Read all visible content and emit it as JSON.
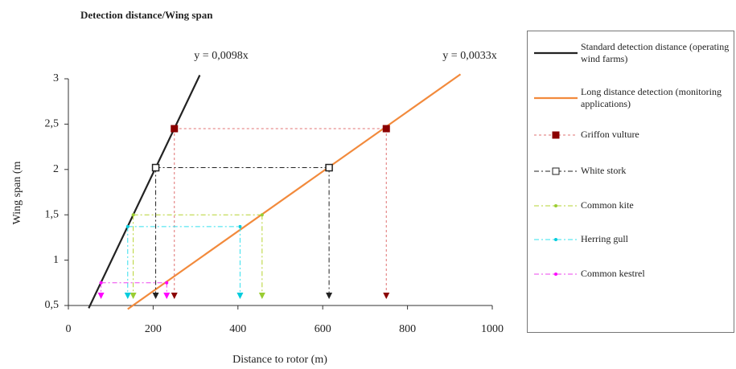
{
  "chart_data": {
    "type": "line",
    "title": "Detection distance/Wing span",
    "x_label": "Distance to rotor (m)",
    "y_label": "Wing span (m",
    "xlim": [
      0,
      1000
    ],
    "xticks": [
      0,
      200,
      400,
      600,
      800,
      1000
    ],
    "ylim": [
      0.5,
      3
    ],
    "yticks": [
      {
        "value": 0.5,
        "label": "0,5"
      },
      1,
      {
        "value": 1.5,
        "label": "1,5"
      },
      2,
      {
        "value": 2.5,
        "label": "2,5"
      },
      3
    ],
    "annotations": [
      "y = 0,0098x",
      "y = 0,0033x"
    ],
    "series": [
      {
        "name": "Standard detection distance (operating wind farms)",
        "color": "#222222",
        "x": [
          48,
          310
        ],
        "values": [
          0.47,
          3.04
        ],
        "dash": "none",
        "marker": "none",
        "width": 2.2
      },
      {
        "name": "Long distance detection (monitoring applications)",
        "color": "#f28a3c",
        "x": [
          140,
          925
        ],
        "values": [
          0.46,
          3.05
        ],
        "dash": "none",
        "marker": "none",
        "width": 2.2
      },
      {
        "name": "Griffon vulture",
        "color": "#e07070",
        "marker_color": "#8b0000",
        "x": [
          250,
          750
        ],
        "values": [
          2.45,
          2.45
        ],
        "dash": "3 3",
        "marker": "square-filled",
        "width": 1
      },
      {
        "name": "White stork",
        "color": "#222222",
        "marker_color": "#222222",
        "x": [
          206,
          615
        ],
        "values": [
          2.02,
          2.02
        ],
        "dash": "6 3 2 3",
        "marker": "square-open",
        "width": 1
      },
      {
        "name": "Common kite",
        "color": "#b5d330",
        "marker_color": "#9acd32",
        "x": [
          153,
          457
        ],
        "values": [
          1.5,
          1.5
        ],
        "dash": "6 3 2 3",
        "marker": "star",
        "width": 1
      },
      {
        "name": "Herring gull",
        "color": "#33e0ee",
        "marker_color": "#00ccdd",
        "x": [
          140,
          405
        ],
        "values": [
          1.37,
          1.37
        ],
        "dash": "6 3 2 3",
        "marker": "star",
        "width": 1
      },
      {
        "name": "Common kestrel",
        "color": "#ee44ee",
        "marker_color": "#ff00ff",
        "x": [
          77,
          232
        ],
        "values": [
          0.75,
          0.75
        ],
        "dash": "6 3 2 3",
        "marker": "star",
        "width": 1
      }
    ]
  }
}
